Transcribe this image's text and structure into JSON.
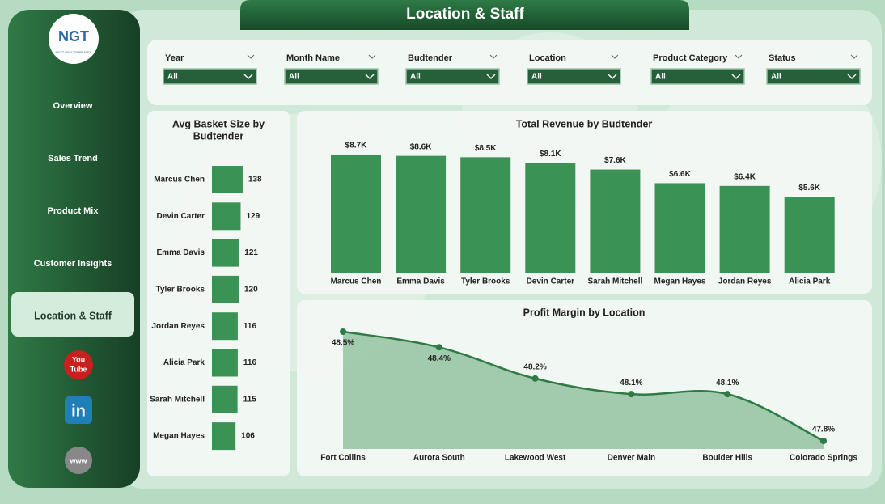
{
  "header": {
    "title": "Location & Staff"
  },
  "logo": {
    "text": "NGT",
    "subtext": "NEXT GEN TEMPLATES"
  },
  "nav": [
    "Overview",
    "Sales Trend",
    "Product Mix",
    "Customer Insights",
    "Location & Staff"
  ],
  "icons": [
    [
      "You",
      "Tube"
    ],
    "in",
    "www"
  ],
  "filters": [
    {
      "label": "Year",
      "value": "All"
    },
    {
      "label": "Month Name",
      "value": "All"
    },
    {
      "label": "Budtender",
      "value": "All"
    },
    {
      "label": "Location",
      "value": "All"
    },
    {
      "label": "Product Category",
      "value": "All"
    },
    {
      "label": "Status",
      "value": "All"
    }
  ],
  "chart_data": [
    {
      "type": "hbar",
      "title": [
        "Avg Basket Size by",
        "Budtender"
      ],
      "color": "#3a9254",
      "categories": [
        "Marcus Chen",
        "Devin Carter",
        "Emma Davis",
        "Tyler Brooks",
        "Jordan Reyes",
        "Alicia Park",
        "Sarah Mitchell",
        "Megan Hayes"
      ],
      "values": [
        138,
        129,
        121,
        120,
        116,
        116,
        115,
        106
      ]
    },
    {
      "type": "bar",
      "title": "Total Revenue by Budtender",
      "color": "#3a9254",
      "categories": [
        "Marcus Chen",
        "Emma Davis",
        "Tyler Brooks",
        "Devin Carter",
        "Sarah Mitchell",
        "Megan Hayes",
        "Jordan Reyes",
        "Alicia Park"
      ],
      "values": [
        8.7,
        8.6,
        8.5,
        8.1,
        7.6,
        6.6,
        6.4,
        5.6
      ],
      "value_labels": [
        "$8.7K",
        "$8.6K",
        "$8.5K",
        "$8.1K",
        "$7.6K",
        "$6.6K",
        "$6.4K",
        "$5.6K"
      ]
    },
    {
      "type": "area",
      "title": "Profit Margin by Location",
      "color": "#2f7a45",
      "categories": [
        "Fort Collins",
        "Aurora South",
        "Lakewood West",
        "Denver Main",
        "Boulder Hills",
        "Colorado Springs"
      ],
      "values": [
        48.5,
        48.4,
        48.2,
        48.1,
        48.1,
        47.8
      ],
      "value_labels": [
        "48.5%",
        "48.4%",
        "48.2%",
        "48.1%",
        "48.1%",
        "47.8%"
      ]
    }
  ]
}
